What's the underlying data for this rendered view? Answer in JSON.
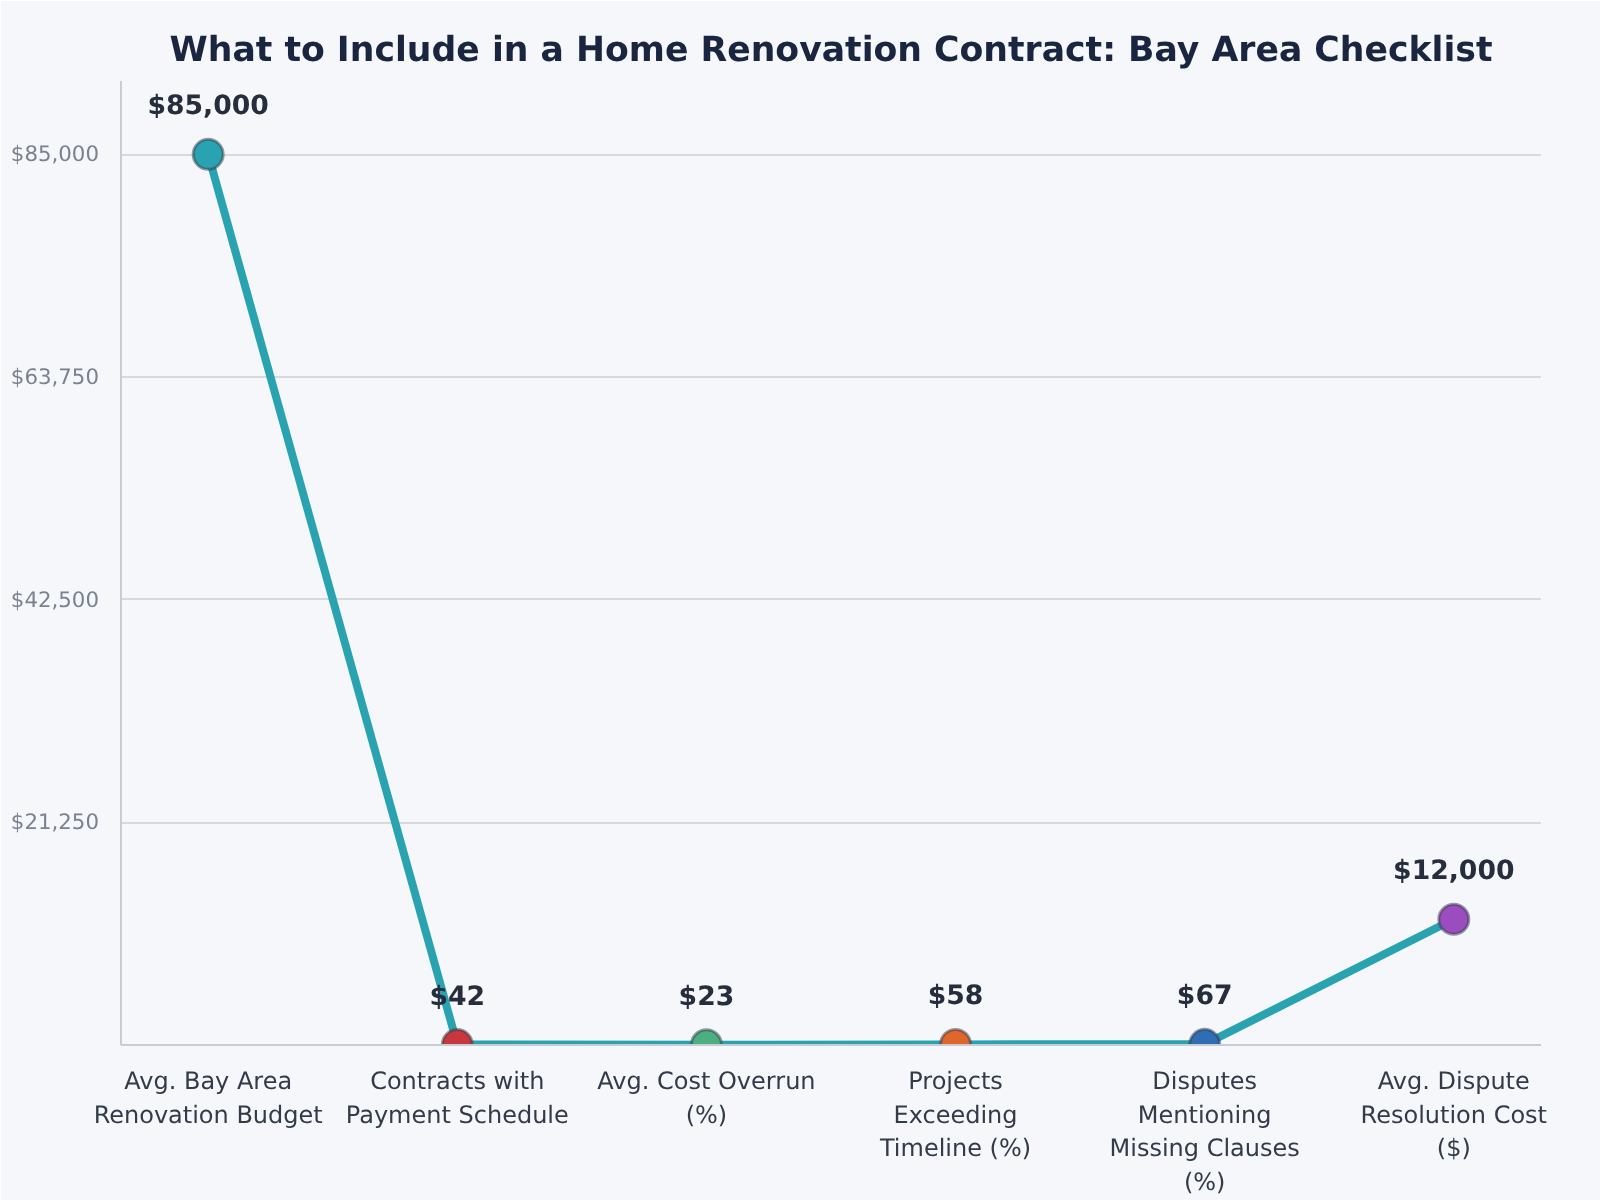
{
  "chart_data": {
    "type": "line",
    "title": "What to Include in a Home Renovation Contract: Bay Area Checklist",
    "categories": [
      "Avg. Bay Area Renovation Budget",
      "Contracts with Payment Schedule",
      "Avg. Cost Overrun (%)",
      "Projects Exceeding Timeline (%)",
      "Disputes Mentioning Missing Clauses (%)",
      "Avg. Dispute Resolution Cost ($)"
    ],
    "series": [
      {
        "color": "#2aa3b0",
        "values": [
          85000,
          42,
          23,
          58,
          67,
          12000
        ],
        "colors": [
          "#2aa3b0",
          "#c7373d",
          "#4caf80",
          "#e0662c",
          "#2f6db5",
          "#9b4dbf"
        ],
        "value_labels": [
          "$85,000",
          "$42",
          "$23",
          "$58",
          "$67",
          "$12,000"
        ]
      }
    ],
    "ylim": [
      0,
      92000
    ],
    "yticks": [
      {
        "value": 21250,
        "label": "$21,250"
      },
      {
        "value": 42500,
        "label": "$42,500"
      },
      {
        "value": 63750,
        "label": "$63,750"
      },
      {
        "value": 85000,
        "label": "$85,000"
      }
    ],
    "grid": "y",
    "marker": "circle",
    "line_style": "solid"
  }
}
